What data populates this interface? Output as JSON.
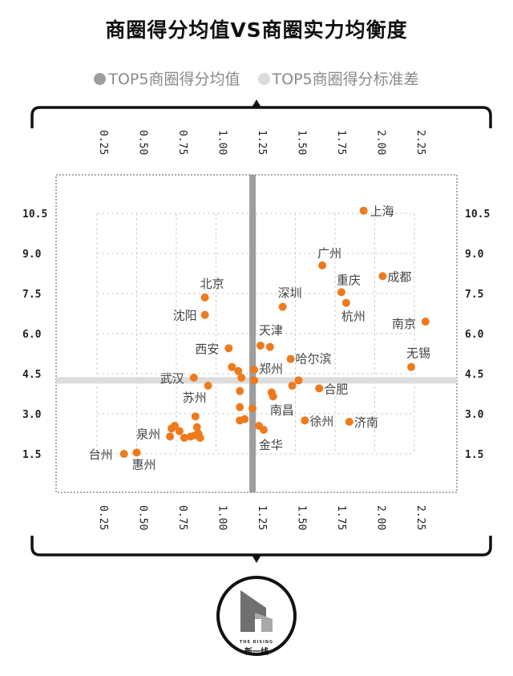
{
  "header": {
    "title": "商圈得分均值VS商圈实力均衡度"
  },
  "legend": {
    "mean_label": "TOP5商圈得分均值",
    "std_label": "TOP5商圈得分标准差",
    "mean_color": "#9e9e9e",
    "std_color": "#dcdcdc"
  },
  "logo": {
    "tagline": "THE RISING",
    "brand": "新一线"
  },
  "chart_data": {
    "type": "scatter",
    "title": "商圈得分均值VS商圈实力均衡度",
    "x_axis": {
      "label": "TOP5商圈得分均值",
      "range": [
        0.0,
        2.5
      ],
      "ticks": [
        "0.25",
        "0.50",
        "0.75",
        "1.00",
        "1.25",
        "1.50",
        "1.75",
        "2.00",
        "2.25"
      ]
    },
    "y_axis": {
      "label": "TOP5商圈得分标准差",
      "range": [
        0.0,
        12.0
      ],
      "ticks": [
        "1.5",
        "3.0",
        "4.5",
        "6.0",
        "7.5",
        "9.0",
        "10.5"
      ]
    },
    "reference_lines": {
      "x": 1.23,
      "y": 4.25
    },
    "point_color": "#ee7a1c",
    "labeled_points": [
      {
        "name": "上海",
        "x": 1.93,
        "y": 10.6
      },
      {
        "name": "广州",
        "x": 1.67,
        "y": 8.55
      },
      {
        "name": "成都",
        "x": 2.05,
        "y": 8.15
      },
      {
        "name": "重庆",
        "x": 1.79,
        "y": 7.55
      },
      {
        "name": "杭州",
        "x": 1.82,
        "y": 7.15
      },
      {
        "name": "深圳",
        "x": 1.42,
        "y": 7.0
      },
      {
        "name": "北京",
        "x": 0.93,
        "y": 7.35
      },
      {
        "name": "沈阳",
        "x": 0.93,
        "y": 6.7
      },
      {
        "name": "南京",
        "x": 2.32,
        "y": 6.45
      },
      {
        "name": "天津",
        "x": 1.28,
        "y": 5.55
      },
      {
        "name": "西安",
        "x": 1.08,
        "y": 5.45
      },
      {
        "name": "哈尔滨",
        "x": 1.47,
        "y": 5.05
      },
      {
        "name": "无锡",
        "x": 2.23,
        "y": 4.75
      },
      {
        "name": "郑州",
        "x": 1.24,
        "y": 4.65
      },
      {
        "name": "武汉",
        "x": 0.86,
        "y": 4.35
      },
      {
        "name": "合肥",
        "x": 1.65,
        "y": 3.95
      },
      {
        "name": "苏州",
        "x": 0.95,
        "y": 4.05
      },
      {
        "name": "南昌",
        "x": 1.36,
        "y": 3.65
      },
      {
        "name": "徐州",
        "x": 1.56,
        "y": 2.75
      },
      {
        "name": "济南",
        "x": 1.84,
        "y": 2.7
      },
      {
        "name": "金华",
        "x": 1.3,
        "y": 2.4
      },
      {
        "name": "泉州",
        "x": 0.71,
        "y": 2.15
      },
      {
        "name": "台州",
        "x": 0.42,
        "y": 1.5
      },
      {
        "name": "惠州",
        "x": 0.5,
        "y": 1.55
      }
    ],
    "unlabeled_points": [
      {
        "x": 1.1,
        "y": 4.75
      },
      {
        "x": 1.14,
        "y": 4.6
      },
      {
        "x": 1.16,
        "y": 4.35
      },
      {
        "x": 1.24,
        "y": 4.25
      },
      {
        "x": 1.15,
        "y": 3.85
      },
      {
        "x": 1.23,
        "y": 3.2
      },
      {
        "x": 1.15,
        "y": 3.25
      },
      {
        "x": 1.15,
        "y": 2.75
      },
      {
        "x": 1.18,
        "y": 2.8
      },
      {
        "x": 1.27,
        "y": 2.55
      },
      {
        "x": 1.34,
        "y": 5.5
      },
      {
        "x": 1.35,
        "y": 3.8
      },
      {
        "x": 1.52,
        "y": 4.25
      },
      {
        "x": 1.48,
        "y": 4.05
      },
      {
        "x": 0.72,
        "y": 2.45
      },
      {
        "x": 0.74,
        "y": 2.55
      },
      {
        "x": 0.77,
        "y": 2.35
      },
      {
        "x": 0.8,
        "y": 2.1
      },
      {
        "x": 0.84,
        "y": 2.15
      },
      {
        "x": 0.87,
        "y": 2.2
      },
      {
        "x": 0.88,
        "y": 2.5
      },
      {
        "x": 0.89,
        "y": 2.25
      },
      {
        "x": 0.9,
        "y": 2.1
      },
      {
        "x": 0.87,
        "y": 2.9
      }
    ]
  }
}
